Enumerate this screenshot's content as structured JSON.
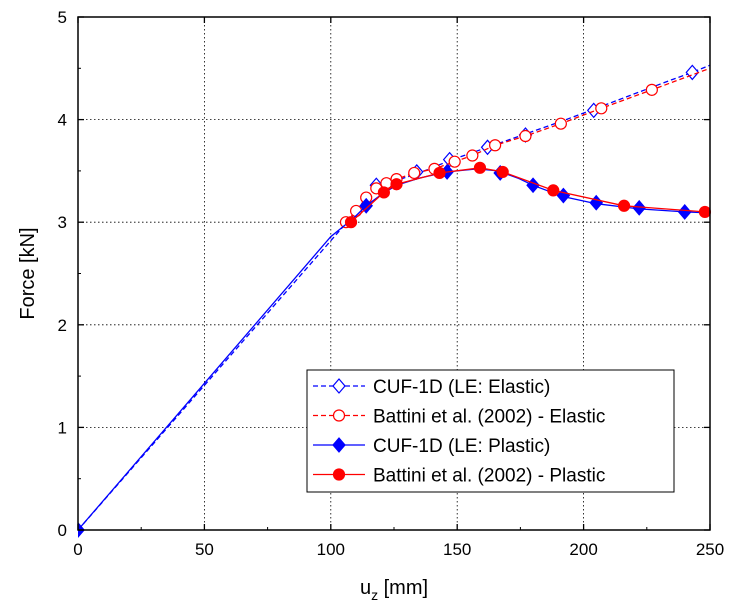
{
  "chart_data": {
    "type": "line",
    "title": "",
    "xlabel": {
      "base": "u",
      "sub": "z",
      "rest": " [mm]"
    },
    "ylabel": "Force [kN]",
    "xlim": [
      0,
      250
    ],
    "ylim": [
      0,
      5
    ],
    "xticks": [
      0,
      50,
      100,
      150,
      200,
      250
    ],
    "yticks": [
      0,
      1,
      2,
      3,
      4,
      5
    ],
    "grid": true,
    "legend_position": "bottom-right",
    "series": [
      {
        "name": "CUF-1D (LE: Elastic)",
        "color": "#0000ff",
        "line": "dashed",
        "marker": "diamond-open",
        "line_points": [
          [
            0,
            0
          ],
          [
            105,
            2.96
          ],
          [
            113,
            3.18
          ],
          [
            118,
            3.34
          ],
          [
            125,
            3.4
          ],
          [
            135,
            3.48
          ],
          [
            147,
            3.6
          ],
          [
            162,
            3.73
          ],
          [
            177,
            3.86
          ],
          [
            192,
            3.99
          ],
          [
            204,
            4.1
          ],
          [
            220,
            4.25
          ],
          [
            235,
            4.39
          ],
          [
            243,
            4.46
          ],
          [
            250,
            4.53
          ]
        ],
        "markers": [
          [
            0,
            0
          ],
          [
            118,
            3.36
          ],
          [
            134,
            3.49
          ],
          [
            147,
            3.61
          ],
          [
            162,
            3.73
          ],
          [
            177,
            3.85
          ],
          [
            204,
            4.09
          ],
          [
            243,
            4.46
          ]
        ]
      },
      {
        "name": "Battini et al. (2002) - Elastic",
        "color": "#ff0000",
        "line": "dashed",
        "marker": "circle-open",
        "line_points": [
          [
            106,
            3.0
          ],
          [
            110,
            3.11
          ],
          [
            114,
            3.24
          ],
          [
            118,
            3.33
          ],
          [
            122,
            3.38
          ],
          [
            126,
            3.42
          ],
          [
            133,
            3.48
          ],
          [
            141,
            3.52
          ],
          [
            149,
            3.59
          ],
          [
            156,
            3.65
          ],
          [
            165,
            3.75
          ],
          [
            177,
            3.84
          ],
          [
            191,
            3.96
          ],
          [
            207,
            4.11
          ],
          [
            227,
            4.29
          ],
          [
            250,
            4.5
          ]
        ],
        "markers": [
          [
            106,
            3.0
          ],
          [
            110,
            3.11
          ],
          [
            114,
            3.24
          ],
          [
            118,
            3.33
          ],
          [
            122,
            3.38
          ],
          [
            126,
            3.42
          ],
          [
            133,
            3.48
          ],
          [
            141,
            3.52
          ],
          [
            149,
            3.59
          ],
          [
            156,
            3.65
          ],
          [
            165,
            3.75
          ],
          [
            177,
            3.84
          ],
          [
            191,
            3.96
          ],
          [
            207,
            4.11
          ],
          [
            227,
            4.29
          ]
        ]
      },
      {
        "name": "CUF-1D (LE: Plastic)",
        "color": "#0000ff",
        "line": "solid",
        "marker": "diamond-filled",
        "line_points": [
          [
            0,
            0
          ],
          [
            100,
            2.86
          ],
          [
            109,
            3.04
          ],
          [
            114,
            3.16
          ],
          [
            120,
            3.27
          ],
          [
            126,
            3.36
          ],
          [
            135,
            3.43
          ],
          [
            146,
            3.49
          ],
          [
            158,
            3.52
          ],
          [
            166,
            3.5
          ],
          [
            174,
            3.43
          ],
          [
            180,
            3.36
          ],
          [
            192,
            3.25
          ],
          [
            205,
            3.18
          ],
          [
            222,
            3.13
          ],
          [
            240,
            3.1
          ],
          [
            250,
            3.09
          ]
        ],
        "markers": [
          [
            0,
            0
          ],
          [
            114,
            3.16
          ],
          [
            146,
            3.49
          ],
          [
            167,
            3.48
          ],
          [
            180,
            3.36
          ],
          [
            192,
            3.26
          ],
          [
            205,
            3.19
          ],
          [
            222,
            3.14
          ],
          [
            240,
            3.1
          ]
        ]
      },
      {
        "name": "Battini et al. (2002) - Plastic",
        "color": "#ff0000",
        "line": "solid",
        "marker": "circle-filled",
        "line_points": [
          [
            108,
            3.0
          ],
          [
            121,
            3.29
          ],
          [
            126,
            3.37
          ],
          [
            143,
            3.48
          ],
          [
            159,
            3.53
          ],
          [
            168,
            3.49
          ],
          [
            188,
            3.31
          ],
          [
            216,
            3.16
          ],
          [
            248,
            3.1
          ]
        ],
        "markers": [
          [
            108,
            3.0
          ],
          [
            121,
            3.29
          ],
          [
            126,
            3.37
          ],
          [
            143,
            3.48
          ],
          [
            159,
            3.53
          ],
          [
            168,
            3.49
          ],
          [
            188,
            3.31
          ],
          [
            216,
            3.16
          ],
          [
            248,
            3.1
          ]
        ]
      }
    ]
  }
}
